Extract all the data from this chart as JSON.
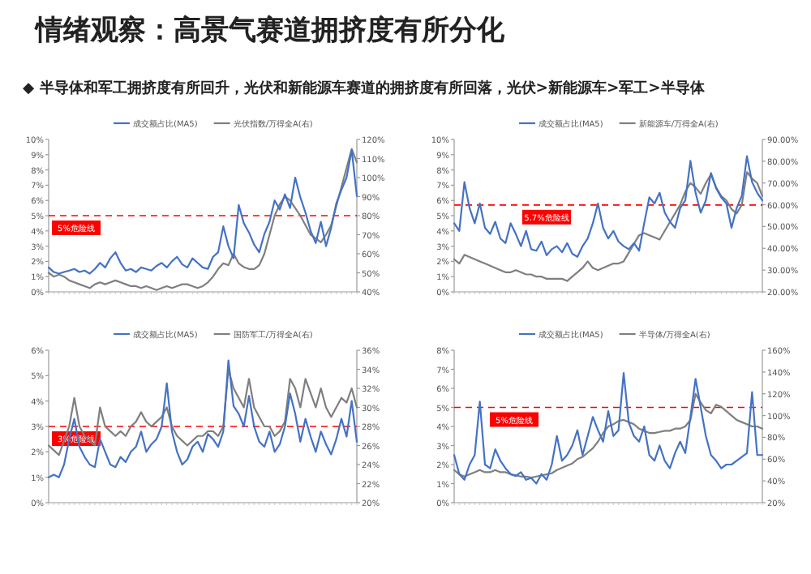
{
  "chart_data": [
    {
      "type": "line",
      "title": "情绪观察：高景气赛道拥挤度有所分化",
      "subtitle": "◆ 半导体和军工拥挤度有所回升，光伏和新能源车赛道的拥挤度有所回落，光伏>新能源车>军工>半导体",
      "legend": "top",
      "categories": [
        null,
        null,
        null,
        null,
        null,
        null,
        null,
        null,
        null,
        null,
        null,
        null,
        null,
        null,
        null,
        null,
        null,
        null,
        null,
        null,
        null,
        null,
        null,
        null,
        null,
        null,
        null,
        null,
        null,
        null,
        null,
        null,
        null,
        null,
        null,
        null,
        null,
        null,
        null,
        null,
        null,
        null,
        null,
        null,
        null,
        null,
        null,
        null,
        null,
        null,
        null,
        null,
        null,
        null,
        null,
        null,
        null,
        null,
        null,
        null,
        null
      ],
      "series": [
        {
          "name": "光伏指数/万得全A(右)",
          "color": "#7f7f7f",
          "axis": "y2",
          "values": [
            50,
            48,
            49,
            48,
            46,
            45,
            44,
            43,
            42,
            44,
            45,
            44,
            45,
            46,
            45,
            44,
            43,
            43,
            42,
            43,
            42,
            41,
            42,
            43,
            42,
            43,
            44,
            44,
            43,
            42,
            43,
            45,
            48,
            52,
            55,
            54,
            60,
            55,
            53,
            52,
            52,
            54,
            60,
            70,
            80,
            86,
            90,
            88,
            84,
            80,
            75,
            70,
            68,
            66,
            70,
            75,
            85,
            95,
            105,
            115,
            108
          ]
        },
        {
          "name": "成交额占比(MA5)",
          "color": "#4472c4",
          "values": [
            1.6,
            1.3,
            1.2,
            1.3,
            1.4,
            1.5,
            1.3,
            1.4,
            1.2,
            1.5,
            1.9,
            1.6,
            2.2,
            2.6,
            1.9,
            1.4,
            1.5,
            1.3,
            1.6,
            1.5,
            1.4,
            1.7,
            1.9,
            1.6,
            2.0,
            2.3,
            1.8,
            1.6,
            2.2,
            1.9,
            1.6,
            1.5,
            2.3,
            2.6,
            4.3,
            3.0,
            2.2,
            5.7,
            4.5,
            3.9,
            3.1,
            2.6,
            3.8,
            4.6,
            6.0,
            5.4,
            6.4,
            5.5,
            7.5,
            6.2,
            5.2,
            4.0,
            3.2,
            4.6,
            3.0,
            4.2,
            5.8,
            6.7,
            7.5,
            9.3,
            6.3
          ]
        }
      ],
      "ylim": [
        0,
        10
      ],
      "yticks": [
        {
          "value": 0,
          "label": "0%"
        },
        {
          "value": 1,
          "label": "1%"
        },
        {
          "value": 2,
          "label": "2%"
        },
        {
          "value": 3,
          "label": "3%"
        },
        {
          "value": 4,
          "label": "4%"
        },
        {
          "value": 5,
          "label": "5%"
        },
        {
          "value": 6,
          "label": "6%"
        },
        {
          "value": 7,
          "label": "7%"
        },
        {
          "value": 8,
          "label": "8%"
        },
        {
          "value": 9,
          "label": "9%"
        },
        {
          "value": 10,
          "label": "10%"
        }
      ],
      "y2lim": [
        40,
        120
      ],
      "y2ticks": [
        {
          "value": 40,
          "label": "40%"
        },
        {
          "value": 50,
          "label": "50%"
        },
        {
          "value": 60,
          "label": "60%"
        },
        {
          "value": 70,
          "label": "70%"
        },
        {
          "value": 80,
          "label": "80%"
        },
        {
          "value": 90,
          "label": "90%"
        },
        {
          "value": 100,
          "label": "100%"
        },
        {
          "value": 110,
          "label": "110%"
        },
        {
          "value": 120,
          "label": "120%"
        }
      ],
      "ref_lines": [
        {
          "axis": "y",
          "value": 5,
          "label": "5%危险线",
          "color": "#ff0000",
          "line_style": "dashed"
        }
      ]
    },
    {
      "type": "line",
      "legend": "top",
      "categories": [
        null,
        null,
        null,
        null,
        null,
        null,
        null,
        null,
        null,
        null,
        null,
        null,
        null,
        null,
        null,
        null,
        null,
        null,
        null,
        null,
        null,
        null,
        null,
        null,
        null,
        null,
        null,
        null,
        null,
        null,
        null,
        null,
        null,
        null,
        null,
        null,
        null,
        null,
        null,
        null,
        null,
        null,
        null,
        null,
        null,
        null,
        null,
        null,
        null,
        null,
        null,
        null,
        null,
        null,
        null,
        null,
        null,
        null,
        null,
        null,
        null
      ],
      "series": [
        {
          "name": "新能源车/万得全A(右)",
          "color": "#7f7f7f",
          "axis": "y2",
          "values": [
            35,
            33,
            37,
            36,
            35,
            34,
            33,
            32,
            31,
            30,
            29,
            29,
            30,
            29,
            28,
            28,
            27,
            27,
            26,
            26,
            26,
            26,
            25,
            27,
            29,
            31,
            34,
            31,
            30,
            31,
            32,
            33,
            33,
            34,
            38,
            42,
            46,
            47,
            46,
            45,
            44,
            48,
            52,
            56,
            60,
            66,
            70,
            68,
            65,
            70,
            74,
            68,
            64,
            62,
            58,
            56,
            60,
            75,
            72,
            70,
            64
          ]
        },
        {
          "name": "成交额占比(MA5)",
          "color": "#4472c4",
          "values": [
            4.5,
            4.0,
            7.2,
            5.5,
            4.5,
            5.8,
            4.2,
            3.8,
            4.6,
            3.5,
            3.2,
            4.5,
            3.8,
            3.0,
            4.0,
            2.8,
            2.7,
            3.3,
            2.4,
            2.8,
            3.0,
            2.6,
            3.2,
            2.5,
            2.3,
            3.0,
            3.5,
            4.5,
            5.8,
            4.2,
            3.5,
            4.0,
            3.3,
            3.0,
            2.8,
            3.2,
            2.7,
            4.5,
            6.2,
            5.8,
            6.5,
            5.2,
            4.6,
            4.2,
            5.5,
            6.0,
            8.6,
            6.5,
            5.2,
            6.0,
            7.8,
            6.8,
            6.2,
            5.8,
            4.2,
            5.5,
            6.3,
            8.9,
            7.2,
            6.5,
            6.0
          ]
        }
      ],
      "ylim": [
        0,
        10
      ],
      "yticks": [
        {
          "value": 0,
          "label": "0%"
        },
        {
          "value": 1,
          "label": "1%"
        },
        {
          "value": 2,
          "label": "2%"
        },
        {
          "value": 3,
          "label": "3%"
        },
        {
          "value": 4,
          "label": "4%"
        },
        {
          "value": 5,
          "label": "5%"
        },
        {
          "value": 6,
          "label": "6%"
        },
        {
          "value": 7,
          "label": "7%"
        },
        {
          "value": 8,
          "label": "8%"
        },
        {
          "value": 9,
          "label": "9%"
        },
        {
          "value": 10,
          "label": "10%"
        }
      ],
      "y2lim": [
        20,
        90
      ],
      "y2ticks": [
        {
          "value": 20,
          "label": "20.00%"
        },
        {
          "value": 30,
          "label": "30.00%"
        },
        {
          "value": 40,
          "label": "40.00%"
        },
        {
          "value": 50,
          "label": "50.00%"
        },
        {
          "value": 60,
          "label": "60.00%"
        },
        {
          "value": 70,
          "label": "70.00%"
        },
        {
          "value": 80,
          "label": "80.00%"
        },
        {
          "value": 90,
          "label": "90.00%"
        }
      ],
      "ref_lines": [
        {
          "axis": "y",
          "value": 5.7,
          "label": "5.7%危险线",
          "color": "#ff0000",
          "line_style": "dashed"
        }
      ]
    },
    {
      "type": "line",
      "legend": "top",
      "categories": [
        null,
        null,
        null,
        null,
        null,
        null,
        null,
        null,
        null,
        null,
        null,
        null,
        null,
        null,
        null,
        null,
        null,
        null,
        null,
        null,
        null,
        null,
        null,
        null,
        null,
        null,
        null,
        null,
        null,
        null,
        null,
        null,
        null,
        null,
        null,
        null,
        null,
        null,
        null,
        null,
        null,
        null,
        null,
        null,
        null,
        null,
        null,
        null,
        null,
        null,
        null,
        null,
        null,
        null,
        null,
        null,
        null,
        null,
        null,
        null,
        null
      ],
      "series": [
        {
          "name": "国防军工/万得全A(右)",
          "color": "#7f7f7f",
          "axis": "y2",
          "values": [
            26,
            25.5,
            25,
            26.5,
            28,
            31,
            28,
            27,
            26.5,
            26,
            30,
            28,
            27.5,
            27,
            27.5,
            27,
            28,
            28.5,
            29.5,
            28.5,
            28,
            28.5,
            29,
            30,
            28,
            27,
            26.5,
            26,
            26.5,
            27,
            27,
            27.5,
            27.5,
            27,
            28,
            34,
            32,
            31,
            30,
            33,
            30,
            29,
            28,
            28,
            27,
            27.5,
            28.5,
            33,
            32,
            30,
            33,
            31.5,
            30,
            32,
            30,
            29,
            30,
            31,
            30.5,
            32,
            30
          ]
        },
        {
          "name": "成交额占比(MA5)",
          "color": "#4472c4",
          "values": [
            1.0,
            1.1,
            1.0,
            1.5,
            2.5,
            3.3,
            2.2,
            1.8,
            1.5,
            1.4,
            2.5,
            2.0,
            1.5,
            1.4,
            1.8,
            1.6,
            2.0,
            2.2,
            2.8,
            2.0,
            2.3,
            2.5,
            3.0,
            4.7,
            2.8,
            2.0,
            1.5,
            1.7,
            2.2,
            2.4,
            2.0,
            2.7,
            2.5,
            2.2,
            2.8,
            5.6,
            3.8,
            3.5,
            3.0,
            4.2,
            3.0,
            2.4,
            2.2,
            2.8,
            2.0,
            2.3,
            3.0,
            4.3,
            3.5,
            2.4,
            3.3,
            2.6,
            2.0,
            2.8,
            2.3,
            1.9,
            2.5,
            3.3,
            2.6,
            4.0,
            2.4
          ]
        }
      ],
      "ylim": [
        0,
        6
      ],
      "yticks": [
        {
          "value": 0,
          "label": "0%"
        },
        {
          "value": 1,
          "label": "1%"
        },
        {
          "value": 2,
          "label": "2%"
        },
        {
          "value": 3,
          "label": "3%"
        },
        {
          "value": 4,
          "label": "4%"
        },
        {
          "value": 5,
          "label": "5%"
        },
        {
          "value": 6,
          "label": "6%"
        }
      ],
      "y2lim": [
        20,
        36
      ],
      "y2ticks": [
        {
          "value": 20,
          "label": "20%"
        },
        {
          "value": 22,
          "label": "22%"
        },
        {
          "value": 24,
          "label": "24%"
        },
        {
          "value": 26,
          "label": "26%"
        },
        {
          "value": 28,
          "label": "28%"
        },
        {
          "value": 30,
          "label": "30%"
        },
        {
          "value": 32,
          "label": "32%"
        },
        {
          "value": 34,
          "label": "34%"
        },
        {
          "value": 36,
          "label": "36%"
        }
      ],
      "ref_lines": [
        {
          "axis": "y",
          "value": 3,
          "label": "3%危险线",
          "color": "#ff0000",
          "line_style": "dashed"
        }
      ]
    },
    {
      "type": "line",
      "legend": "top",
      "categories": [
        null,
        null,
        null,
        null,
        null,
        null,
        null,
        null,
        null,
        null,
        null,
        null,
        null,
        null,
        null,
        null,
        null,
        null,
        null,
        null,
        null,
        null,
        null,
        null,
        null,
        null,
        null,
        null,
        null,
        null,
        null,
        null,
        null,
        null,
        null,
        null,
        null,
        null,
        null,
        null,
        null,
        null,
        null,
        null,
        null,
        null,
        null,
        null,
        null,
        null,
        null,
        null,
        null,
        null,
        null,
        null,
        null,
        null,
        null,
        null,
        null
      ],
      "series": [
        {
          "name": "半导体/万得全A(右)",
          "color": "#7f7f7f",
          "axis": "y2",
          "values": [
            50,
            46,
            44,
            46,
            48,
            50,
            48,
            48,
            50,
            48,
            48,
            46,
            45,
            44,
            44,
            43,
            44,
            45,
            46,
            47,
            50,
            52,
            54,
            56,
            60,
            62,
            66,
            70,
            76,
            84,
            90,
            92,
            95,
            96,
            94,
            92,
            88,
            86,
            84,
            84,
            85,
            86,
            86,
            88,
            88,
            90,
            96,
            120,
            112,
            105,
            102,
            110,
            108,
            104,
            100,
            96,
            94,
            92,
            90,
            90,
            88
          ]
        },
        {
          "name": "成交额占比(MA5)",
          "color": "#4472c4",
          "values": [
            2.5,
            1.5,
            1.2,
            2.0,
            2.5,
            5.3,
            2.0,
            1.8,
            2.8,
            2.2,
            1.8,
            1.5,
            1.4,
            1.6,
            1.2,
            1.3,
            1.0,
            1.5,
            1.2,
            2.0,
            3.5,
            2.2,
            2.5,
            3.0,
            3.8,
            2.5,
            3.5,
            4.5,
            3.8,
            3.2,
            4.8,
            3.5,
            3.8,
            6.8,
            4.2,
            3.5,
            3.2,
            4.0,
            2.5,
            2.2,
            3.0,
            2.2,
            1.8,
            2.6,
            3.2,
            2.6,
            4.5,
            6.5,
            5.0,
            3.5,
            2.5,
            2.2,
            1.8,
            2.0,
            2.0,
            2.2,
            2.4,
            2.6,
            5.8,
            2.5,
            2.5
          ]
        }
      ],
      "ylim": [
        0,
        8
      ],
      "yticks": [
        {
          "value": 0,
          "label": "0%"
        },
        {
          "value": 1,
          "label": "1%"
        },
        {
          "value": 2,
          "label": "2%"
        },
        {
          "value": 3,
          "label": "3%"
        },
        {
          "value": 4,
          "label": "4%"
        },
        {
          "value": 5,
          "label": "5%"
        },
        {
          "value": 6,
          "label": "6%"
        },
        {
          "value": 7,
          "label": "7%"
        },
        {
          "value": 8,
          "label": "8%"
        }
      ],
      "y2lim": [
        20,
        160
      ],
      "y2ticks": [
        {
          "value": 20,
          "label": "20%"
        },
        {
          "value": 40,
          "label": "40%"
        },
        {
          "value": 60,
          "label": "60%"
        },
        {
          "value": 80,
          "label": "80%"
        },
        {
          "value": 100,
          "label": "100%"
        },
        {
          "value": 120,
          "label": "120%"
        },
        {
          "value": 140,
          "label": "140%"
        },
        {
          "value": 160,
          "label": "160%"
        }
      ],
      "ref_lines": [
        {
          "axis": "y",
          "value": 5,
          "label": "5%危险线",
          "color": "#ff0000",
          "line_style": "dashed"
        }
      ]
    }
  ]
}
